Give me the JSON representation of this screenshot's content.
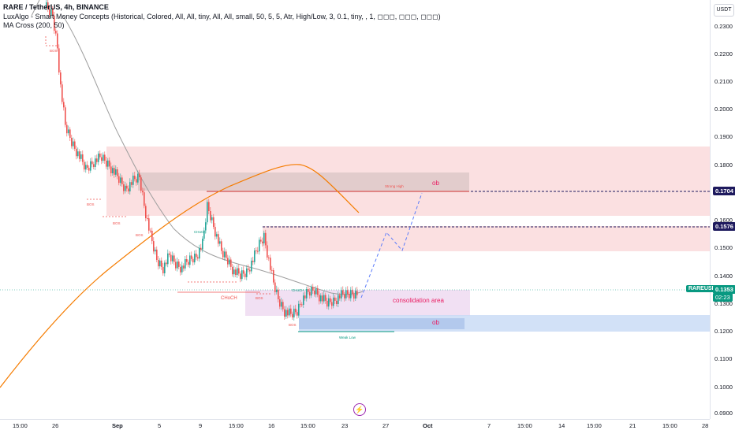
{
  "legend": {
    "symbol": "RARE / TetherUS, 4h, BINANCE",
    "indicator1": "LuxAlgo - Smart Money Concepts (Historical, Colored, All, All, tiny, All, All, small, 50, 5, 5, Atr, High/Low, 3, 0.1, tiny, , 1, ◻◻◻, ◻◻◻, ◻◻◻)",
    "indicator2": "MA Cross (200, 50)"
  },
  "currency_button": "USDT",
  "price_ticks": [
    "0.2300",
    "0.2200",
    "0.2100",
    "0.2000",
    "0.1900",
    "0.1800",
    "0.1600",
    "0.1500",
    "0.1400",
    "0.1300",
    "0.1200",
    "0.1100",
    "0.1000",
    "0.0900"
  ],
  "time_ticks": [
    "15:00",
    "26",
    "Sep",
    "5",
    "9",
    "15:00",
    "16",
    "15:00",
    "23",
    "27",
    "Oct",
    "7",
    "15:00",
    "14",
    "15:00",
    "21",
    "15:00",
    "28"
  ],
  "badges": {
    "level1": "0.1704",
    "level2": "0.1576",
    "symbol": "RAREUSDT",
    "price": "0.1353",
    "countdown": "02:23"
  },
  "annotations": {
    "ob_top": "ob",
    "ob_bottom": "ob",
    "consolidation": "consolidation area",
    "strong_high": "Strong High",
    "weak_low": "Weak Low",
    "choch1": "CHoCH",
    "choch2": "CHoCH",
    "choch3": "CHoCH",
    "bos1": "BOS",
    "bos2": "BOS",
    "bos3": "BOS",
    "bos4": "BOS",
    "bos5": "BOS",
    "bos6": "BOS"
  },
  "colors": {
    "bull": "#26a69a",
    "bear": "#ef5350",
    "ma_slow": "#f57c00",
    "ma_fast": "#9e9e9e",
    "supply_zone": "#f7c6c8",
    "demand_zone": "#c7daf5",
    "consolidation_zone": "#eed8f0",
    "badge_dark": "#1e1a5e",
    "badge_green": "#089981"
  }
}
